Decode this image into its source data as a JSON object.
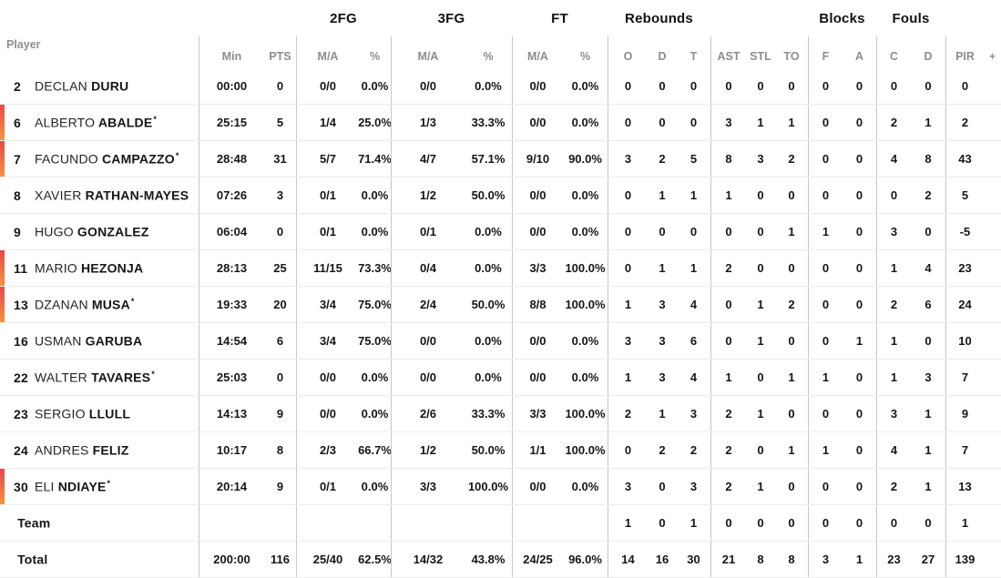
{
  "header": {
    "player_label": "Player",
    "group_2fg": "2FG",
    "group_3fg": "3FG",
    "group_ft": "FT",
    "group_rebounds": "Rebounds",
    "group_blocks": "Blocks",
    "group_fouls": "Fouls",
    "sub": {
      "min": "Min",
      "pts": "PTS",
      "ma": "M/A",
      "pct": "%",
      "reb_o": "O",
      "reb_d": "D",
      "reb_t": "T",
      "ast": "AST",
      "stl": "STL",
      "to": "TO",
      "blk_f": "F",
      "blk_a": "A",
      "foul_c": "C",
      "foul_d": "D",
      "pir": "PIR",
      "plus": "+"
    }
  },
  "colors": {
    "marker_top": "#e8484b",
    "marker_bottom": "#f6923e",
    "divider": "#c7c7c7",
    "row_line": "#ececec",
    "header_text": "#8d8d8d",
    "text": "#161616"
  },
  "rows": [
    {
      "num": "2",
      "first": "DECLAN",
      "last": "DURU",
      "star": "",
      "on_court": false,
      "min": "00:00",
      "pts": "0",
      "fg2_ma": "0/0",
      "fg2_pct": "0.0%",
      "fg3_ma": "0/0",
      "fg3_pct": "0.0%",
      "ft_ma": "0/0",
      "ft_pct": "0.0%",
      "reb_o": "0",
      "reb_d": "0",
      "reb_t": "0",
      "ast": "0",
      "stl": "0",
      "to": "0",
      "blk_f": "0",
      "blk_a": "0",
      "foul_c": "0",
      "foul_d": "0",
      "pir": "0"
    },
    {
      "num": "6",
      "first": "ALBERTO",
      "last": "ABALDE",
      "star": "*",
      "on_court": true,
      "min": "25:15",
      "pts": "5",
      "fg2_ma": "1/4",
      "fg2_pct": "25.0%",
      "fg3_ma": "1/3",
      "fg3_pct": "33.3%",
      "ft_ma": "0/0",
      "ft_pct": "0.0%",
      "reb_o": "0",
      "reb_d": "0",
      "reb_t": "0",
      "ast": "3",
      "stl": "1",
      "to": "1",
      "blk_f": "0",
      "blk_a": "0",
      "foul_c": "2",
      "foul_d": "1",
      "pir": "2"
    },
    {
      "num": "7",
      "first": "FACUNDO",
      "last": "CAMPAZZO",
      "star": "*",
      "on_court": true,
      "min": "28:48",
      "pts": "31",
      "fg2_ma": "5/7",
      "fg2_pct": "71.4%",
      "fg3_ma": "4/7",
      "fg3_pct": "57.1%",
      "ft_ma": "9/10",
      "ft_pct": "90.0%",
      "reb_o": "3",
      "reb_d": "2",
      "reb_t": "5",
      "ast": "8",
      "stl": "3",
      "to": "2",
      "blk_f": "0",
      "blk_a": "0",
      "foul_c": "4",
      "foul_d": "8",
      "pir": "43"
    },
    {
      "num": "8",
      "first": "XAVIER",
      "last": "RATHAN-MAYES",
      "star": "",
      "on_court": false,
      "min": "07:26",
      "pts": "3",
      "fg2_ma": "0/1",
      "fg2_pct": "0.0%",
      "fg3_ma": "1/2",
      "fg3_pct": "50.0%",
      "ft_ma": "0/0",
      "ft_pct": "0.0%",
      "reb_o": "0",
      "reb_d": "1",
      "reb_t": "1",
      "ast": "1",
      "stl": "0",
      "to": "0",
      "blk_f": "0",
      "blk_a": "0",
      "foul_c": "0",
      "foul_d": "2",
      "pir": "5"
    },
    {
      "num": "9",
      "first": "HUGO",
      "last": "GONZALEZ",
      "star": "",
      "on_court": false,
      "min": "06:04",
      "pts": "0",
      "fg2_ma": "0/1",
      "fg2_pct": "0.0%",
      "fg3_ma": "0/1",
      "fg3_pct": "0.0%",
      "ft_ma": "0/0",
      "ft_pct": "0.0%",
      "reb_o": "0",
      "reb_d": "0",
      "reb_t": "0",
      "ast": "0",
      "stl": "0",
      "to": "1",
      "blk_f": "1",
      "blk_a": "0",
      "foul_c": "3",
      "foul_d": "0",
      "pir": "-5"
    },
    {
      "num": "11",
      "first": "MARIO",
      "last": "HEZONJA",
      "star": "",
      "on_court": true,
      "min": "28:13",
      "pts": "25",
      "fg2_ma": "11/15",
      "fg2_pct": "73.3%",
      "fg3_ma": "0/4",
      "fg3_pct": "0.0%",
      "ft_ma": "3/3",
      "ft_pct": "100.0%",
      "reb_o": "0",
      "reb_d": "1",
      "reb_t": "1",
      "ast": "2",
      "stl": "0",
      "to": "0",
      "blk_f": "0",
      "blk_a": "0",
      "foul_c": "1",
      "foul_d": "4",
      "pir": "23"
    },
    {
      "num": "13",
      "first": "DZANAN",
      "last": "MUSA",
      "star": "*",
      "on_court": true,
      "min": "19:33",
      "pts": "20",
      "fg2_ma": "3/4",
      "fg2_pct": "75.0%",
      "fg3_ma": "2/4",
      "fg3_pct": "50.0%",
      "ft_ma": "8/8",
      "ft_pct": "100.0%",
      "reb_o": "1",
      "reb_d": "3",
      "reb_t": "4",
      "ast": "0",
      "stl": "1",
      "to": "2",
      "blk_f": "0",
      "blk_a": "0",
      "foul_c": "2",
      "foul_d": "6",
      "pir": "24"
    },
    {
      "num": "16",
      "first": "USMAN",
      "last": "GARUBA",
      "star": "",
      "on_court": false,
      "min": "14:54",
      "pts": "6",
      "fg2_ma": "3/4",
      "fg2_pct": "75.0%",
      "fg3_ma": "0/0",
      "fg3_pct": "0.0%",
      "ft_ma": "0/0",
      "ft_pct": "0.0%",
      "reb_o": "3",
      "reb_d": "3",
      "reb_t": "6",
      "ast": "0",
      "stl": "1",
      "to": "0",
      "blk_f": "0",
      "blk_a": "1",
      "foul_c": "1",
      "foul_d": "0",
      "pir": "10"
    },
    {
      "num": "22",
      "first": "WALTER",
      "last": "TAVARES",
      "star": "*",
      "on_court": false,
      "min": "25:03",
      "pts": "0",
      "fg2_ma": "0/0",
      "fg2_pct": "0.0%",
      "fg3_ma": "0/0",
      "fg3_pct": "0.0%",
      "ft_ma": "0/0",
      "ft_pct": "0.0%",
      "reb_o": "1",
      "reb_d": "3",
      "reb_t": "4",
      "ast": "1",
      "stl": "0",
      "to": "1",
      "blk_f": "1",
      "blk_a": "0",
      "foul_c": "1",
      "foul_d": "3",
      "pir": "7"
    },
    {
      "num": "23",
      "first": "SERGIO",
      "last": "LLULL",
      "star": "",
      "on_court": false,
      "min": "14:13",
      "pts": "9",
      "fg2_ma": "0/0",
      "fg2_pct": "0.0%",
      "fg3_ma": "2/6",
      "fg3_pct": "33.3%",
      "ft_ma": "3/3",
      "ft_pct": "100.0%",
      "reb_o": "2",
      "reb_d": "1",
      "reb_t": "3",
      "ast": "2",
      "stl": "1",
      "to": "0",
      "blk_f": "0",
      "blk_a": "0",
      "foul_c": "3",
      "foul_d": "1",
      "pir": "9"
    },
    {
      "num": "24",
      "first": "ANDRES",
      "last": "FELIZ",
      "star": "",
      "on_court": false,
      "min": "10:17",
      "pts": "8",
      "fg2_ma": "2/3",
      "fg2_pct": "66.7%",
      "fg3_ma": "1/2",
      "fg3_pct": "50.0%",
      "ft_ma": "1/1",
      "ft_pct": "100.0%",
      "reb_o": "0",
      "reb_d": "2",
      "reb_t": "2",
      "ast": "2",
      "stl": "0",
      "to": "1",
      "blk_f": "1",
      "blk_a": "0",
      "foul_c": "4",
      "foul_d": "1",
      "pir": "7"
    },
    {
      "num": "30",
      "first": "ELI",
      "last": "NDIAYE",
      "star": "*",
      "on_court": true,
      "min": "20:14",
      "pts": "9",
      "fg2_ma": "0/1",
      "fg2_pct": "0.0%",
      "fg3_ma": "3/3",
      "fg3_pct": "100.0%",
      "ft_ma": "0/0",
      "ft_pct": "0.0%",
      "reb_o": "3",
      "reb_d": "0",
      "reb_t": "3",
      "ast": "2",
      "stl": "1",
      "to": "0",
      "blk_f": "0",
      "blk_a": "0",
      "foul_c": "2",
      "foul_d": "1",
      "pir": "13"
    },
    {
      "num": "",
      "first": "",
      "last": "Team",
      "star": "",
      "on_court": false,
      "min": "",
      "pts": "",
      "fg2_ma": "",
      "fg2_pct": "",
      "fg3_ma": "",
      "fg3_pct": "",
      "ft_ma": "",
      "ft_pct": "",
      "reb_o": "1",
      "reb_d": "0",
      "reb_t": "1",
      "ast": "0",
      "stl": "0",
      "to": "0",
      "blk_f": "0",
      "blk_a": "0",
      "foul_c": "0",
      "foul_d": "0",
      "pir": "1"
    },
    {
      "num": "",
      "first": "",
      "last": "Total",
      "star": "",
      "on_court": false,
      "min": "200:00",
      "pts": "116",
      "fg2_ma": "25/40",
      "fg2_pct": "62.5%",
      "fg3_ma": "14/32",
      "fg3_pct": "43.8%",
      "ft_ma": "24/25",
      "ft_pct": "96.0%",
      "reb_o": "14",
      "reb_d": "16",
      "reb_t": "30",
      "ast": "21",
      "stl": "8",
      "to": "8",
      "blk_f": "3",
      "blk_a": "1",
      "foul_c": "23",
      "foul_d": "27",
      "pir": "139"
    }
  ]
}
